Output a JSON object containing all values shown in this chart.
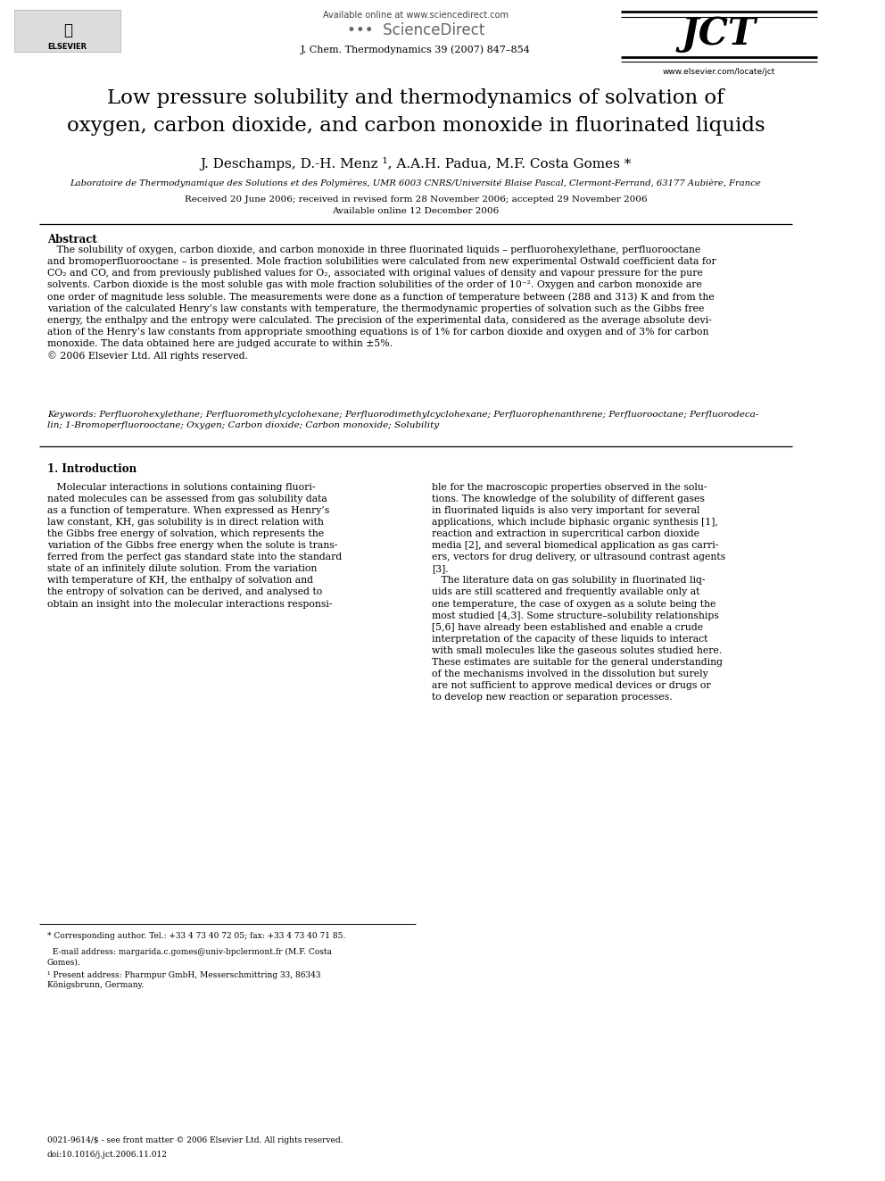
{
  "background_color": "#ffffff",
  "page_width": 9.92,
  "page_height": 13.23,
  "header": {
    "available_online": "Available online at www.sciencedirect.com",
    "journal_name": "J. Chem. Thermodynamics 39 (2007) 847–854",
    "sciencedirect_text": "ScienceDirect",
    "jct_text": "JCT",
    "elsevier_text": "ELSEVIER",
    "website": "www.elsevier.com/locate/jct"
  },
  "title": "Low pressure solubility and thermodynamics of solvation of\noxygen, carbon dioxide, and carbon monoxide in fluorinated liquids",
  "authors": "J. Deschamps, D.-H. Menz ¹, A.A.H. Padua, M.F. Costa Gomes *",
  "affiliation": "Laboratoire de Thermodynamique des Solutions et des Polymères, UMR 6003 CNRS/Université Blaise Pascal, Clermont-Ferrand, 63177 Aubière, France",
  "received": "Received 20 June 2006; received in revised form 28 November 2006; accepted 29 November 2006",
  "available": "Available online 12 December 2006",
  "abstract_title": "Abstract",
  "abstract_text": "   The solubility of oxygen, carbon dioxide, and carbon monoxide in three fluorinated liquids – perfluorohexylethane, perfluorooctane\nand bromoperfluorooctane – is presented. Mole fraction solubilities were calculated from new experimental Ostwald coefficient data for\nCO₂ and CO, and from previously published values for O₂, associated with original values of density and vapour pressure for the pure\nsolvents. Carbon dioxide is the most soluble gas with mole fraction solubilities of the order of 10⁻². Oxygen and carbon monoxide are\none order of magnitude less soluble. The measurements were done as a function of temperature between (288 and 313) K and from the\nvariation of the calculated Henry’s law constants with temperature, the thermodynamic properties of solvation such as the Gibbs free\nenergy, the enthalpy and the entropy were calculated. The precision of the experimental data, considered as the average absolute devi-\nation of the Henry’s law constants from appropriate smoothing equations is of 1% for carbon dioxide and oxygen and of 3% for carbon\nmonoxide. The data obtained here are judged accurate to within ±5%.\n© 2006 Elsevier Ltd. All rights reserved.",
  "keywords_label": "Keywords:",
  "keywords_text": " Perfluorohexylethane; Perfluoromethylcyclohexane; Perfluorodimethylcyclohexane; Perfluorophenanthrene; Perfluorooctane; Perfluorodeca-\nlin; 1-Bromoperfluorooctane; Oxygen; Carbon dioxide; Carbon monoxide; Solubility",
  "section1_title": "1. Introduction",
  "section1_col1": "   Molecular interactions in solutions containing fluori-\nnated molecules can be assessed from gas solubility data\nas a function of temperature. When expressed as Henry’s\nlaw constant, KH, gas solubility is in direct relation with\nthe Gibbs free energy of solvation, which represents the\nvariation of the Gibbs free energy when the solute is trans-\nferred from the perfect gas standard state into the standard\nstate of an infinitely dilute solution. From the variation\nwith temperature of KH, the enthalpy of solvation and\nthe entropy of solvation can be derived, and analysed to\nobtain an insight into the molecular interactions responsi-",
  "section1_col2": "ble for the macroscopic properties observed in the solu-\ntions. The knowledge of the solubility of different gases\nin fluorinated liquids is also very important for several\napplications, which include biphasic organic synthesis [1],\nreaction and extraction in supercritical carbon dioxide\nmedia [2], and several biomedical application as gas carri-\ners, vectors for drug delivery, or ultrasound contrast agents\n[3].\n   The literature data on gas solubility in fluorinated liq-\nuids are still scattered and frequently available only at\none temperature, the case of oxygen as a solute being the\nmost studied [4,3]. Some structure–solubility relationships\n[5,6] have already been established and enable a crude\ninterpretation of the capacity of these liquids to interact\nwith small molecules like the gaseous solutes studied here.\nThese estimates are suitable for the general understanding\nof the mechanisms involved in the dissolution but surely\nare not sufficient to approve medical devices or drugs or\nto develop new reaction or separation processes.",
  "footnote_star": "* Corresponding author. Tel.: +33 4 73 40 72 05; fax: +33 4 73 40 71 85.",
  "footnote_email": "  E-mail address: margarida.c.gomes@univ-bpclermont.fr (M.F. Costa\nGomes).",
  "footnote_1": "¹ Present address: Pharmpur GmbH, Messerschmittring 33, 86343\nKönigsbrunn, Germany.",
  "footer_issn": "0021-9614/$ - see front matter © 2006 Elsevier Ltd. All rights reserved.",
  "footer_doi": "doi:10.1016/j.jct.2006.11.012"
}
